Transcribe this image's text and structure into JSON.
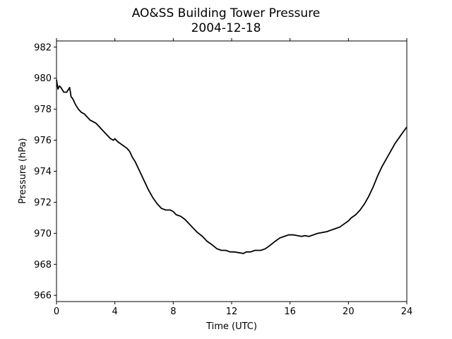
{
  "chart_data": {
    "type": "line",
    "title": "AO&SS Building Tower Pressure",
    "subtitle": "2004-12-18",
    "xlabel": "Time (UTC)",
    "ylabel": "Pressure (hPa)",
    "xlim": [
      0,
      24
    ],
    "ylim": [
      965.6,
      982.4
    ],
    "xticks": [
      0,
      4,
      8,
      12,
      16,
      20,
      24
    ],
    "yticks": [
      966,
      968,
      970,
      972,
      974,
      976,
      978,
      980,
      982
    ],
    "grid": false,
    "legend": "none",
    "series": [
      {
        "color": "#000000",
        "x": [
          0,
          0.1,
          0.2,
          0.3,
          0.5,
          0.7,
          0.9,
          1.0,
          1.1,
          1.3,
          1.5,
          1.7,
          1.9,
          2.1,
          2.3,
          2.5,
          2.7,
          2.9,
          3.1,
          3.3,
          3.5,
          3.7,
          3.9,
          4.0,
          4.2,
          4.5,
          4.8,
          5.0,
          5.2,
          5.4,
          5.6,
          5.8,
          6.0,
          6.3,
          6.6,
          6.9,
          7.2,
          7.5,
          7.8,
          8.0,
          8.2,
          8.5,
          8.8,
          9.0,
          9.3,
          9.6,
          10.0,
          10.3,
          10.6,
          11.0,
          11.3,
          11.6,
          11.9,
          12.2,
          12.5,
          12.8,
          13.0,
          13.3,
          13.6,
          14.0,
          14.3,
          14.6,
          15.0,
          15.3,
          15.6,
          15.9,
          16.2,
          16.5,
          16.8,
          17.0,
          17.3,
          17.6,
          17.9,
          18.2,
          18.5,
          18.8,
          19.1,
          19.4,
          19.7,
          20.0,
          20.2,
          20.5,
          20.8,
          21.1,
          21.4,
          21.7,
          22.0,
          22.3,
          22.6,
          22.9,
          23.2,
          23.5,
          23.8,
          24.0
        ],
        "y": [
          979.9,
          979.3,
          979.5,
          979.4,
          979.1,
          979.1,
          979.4,
          978.8,
          978.7,
          978.3,
          978.0,
          977.8,
          977.7,
          977.5,
          977.3,
          977.2,
          977.1,
          976.9,
          976.7,
          976.5,
          976.3,
          976.1,
          976.0,
          976.1,
          975.9,
          975.7,
          975.5,
          975.3,
          974.9,
          974.6,
          974.2,
          973.8,
          973.4,
          972.8,
          972.3,
          971.9,
          971.6,
          971.5,
          971.5,
          971.4,
          971.2,
          971.1,
          970.9,
          970.7,
          970.4,
          970.1,
          969.8,
          969.5,
          969.3,
          969.0,
          968.9,
          968.9,
          968.8,
          968.8,
          968.75,
          968.7,
          968.8,
          968.8,
          968.9,
          968.9,
          969.0,
          969.2,
          969.5,
          969.7,
          969.8,
          969.9,
          969.9,
          969.85,
          969.8,
          969.85,
          969.8,
          969.9,
          970.0,
          970.05,
          970.1,
          970.2,
          970.3,
          970.4,
          970.6,
          970.8,
          971.0,
          971.2,
          971.5,
          971.9,
          972.4,
          973.0,
          973.7,
          974.3,
          974.8,
          975.3,
          975.8,
          976.2,
          976.6,
          976.85
        ]
      }
    ]
  }
}
